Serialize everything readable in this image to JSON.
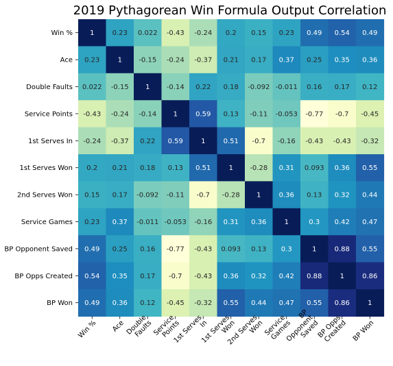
{
  "chart_data": {
    "type": "heatmap",
    "title": "2019 Pythagorean Win Formula Output Correlation",
    "row_labels": [
      "Win %",
      "Ace",
      "Double Faults",
      "Service Points",
      "1st Serves In",
      "1st Serves Won",
      "2nd Serves Won",
      "Service Games",
      "BP Opponent Saved",
      "BP Opps Created",
      "BP Won"
    ],
    "col_labels": [
      [
        "Win %"
      ],
      [
        "Ace"
      ],
      [
        "Double",
        "Faults"
      ],
      [
        "Service",
        "Points"
      ],
      [
        "1st Serves",
        "In"
      ],
      [
        "1st Serves",
        "Won"
      ],
      [
        "2nd Serves",
        "Won"
      ],
      [
        "Service",
        "Games"
      ],
      [
        "BP",
        "Opponent",
        "Saved"
      ],
      [
        "BP Opps",
        "Created"
      ],
      [
        "BP Won"
      ]
    ],
    "values": [
      [
        1,
        0.23,
        0.022,
        -0.43,
        -0.24,
        0.2,
        0.15,
        0.23,
        0.49,
        0.54,
        0.49
      ],
      [
        0.23,
        1,
        -0.15,
        -0.24,
        -0.37,
        0.21,
        0.17,
        0.37,
        0.25,
        0.35,
        0.36
      ],
      [
        0.022,
        -0.15,
        1,
        -0.14,
        0.22,
        0.18,
        -0.092,
        -0.011,
        0.16,
        0.17,
        0.12
      ],
      [
        -0.43,
        -0.24,
        -0.14,
        1,
        0.59,
        0.13,
        -0.11,
        -0.053,
        -0.77,
        -0.7,
        -0.45
      ],
      [
        -0.24,
        -0.37,
        0.22,
        0.59,
        1,
        0.51,
        -0.7,
        -0.16,
        -0.43,
        -0.43,
        -0.32
      ],
      [
        0.2,
        0.21,
        0.18,
        0.13,
        0.51,
        1,
        -0.28,
        0.31,
        0.093,
        0.36,
        0.55
      ],
      [
        0.15,
        0.17,
        -0.092,
        -0.11,
        -0.7,
        -0.28,
        1,
        0.36,
        0.13,
        0.32,
        0.44
      ],
      [
        0.23,
        0.37,
        -0.011,
        -0.053,
        -0.16,
        0.31,
        0.36,
        1,
        0.3,
        0.42,
        0.47
      ],
      [
        0.49,
        0.25,
        0.16,
        -0.77,
        -0.43,
        0.093,
        0.13,
        0.3,
        1,
        0.88,
        0.55
      ],
      [
        0.54,
        0.35,
        0.17,
        -0.7,
        -0.43,
        0.36,
        0.32,
        0.42,
        0.88,
        1,
        0.86
      ],
      [
        0.49,
        0.36,
        0.12,
        -0.45,
        -0.32,
        0.55,
        0.44,
        0.47,
        0.55,
        0.86,
        1
      ]
    ],
    "value_range": [
      -0.77,
      1
    ],
    "colormap": "YlGnBu",
    "colormap_stops": [
      "#ffffd9",
      "#edf8b1",
      "#c7e9b4",
      "#7fcdbb",
      "#41b6c4",
      "#1d91c0",
      "#225ea8",
      "#253494",
      "#081d58"
    ],
    "annotations": true,
    "colorbar": false,
    "grid": false
  }
}
